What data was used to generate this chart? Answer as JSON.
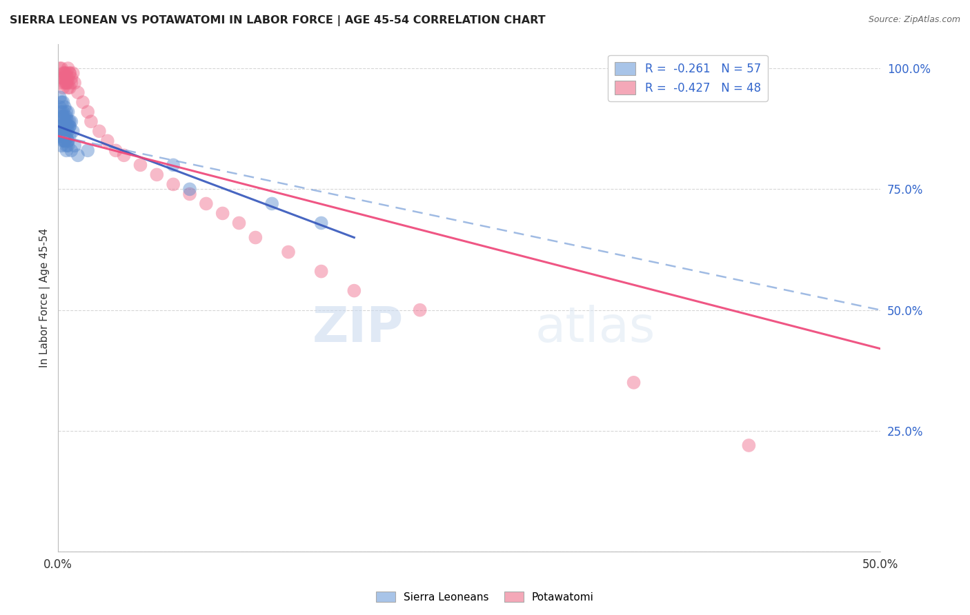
{
  "title": "SIERRA LEONEAN VS POTAWATOMI IN LABOR FORCE | AGE 45-54 CORRELATION CHART",
  "source": "Source: ZipAtlas.com",
  "ylabel": "In Labor Force | Age 45-54",
  "xlim": [
    0.0,
    0.5
  ],
  "ylim": [
    0.0,
    1.05
  ],
  "yticks": [
    0.0,
    0.25,
    0.5,
    0.75,
    1.0
  ],
  "ytick_labels": [
    "",
    "25.0%",
    "50.0%",
    "75.0%",
    "100.0%"
  ],
  "xticks": [
    0.0,
    0.1,
    0.2,
    0.3,
    0.4,
    0.5
  ],
  "xtick_labels": [
    "0.0%",
    "",
    "",
    "",
    "",
    "50.0%"
  ],
  "legend_labels": [
    "R =  -0.261   N = 57",
    "R =  -0.427   N = 48"
  ],
  "legend_colors": [
    "#a8c4e8",
    "#f4a8b8"
  ],
  "blue_color": "#5588cc",
  "pink_color": "#ee6688",
  "trendline_blue_solid_color": "#3355bb",
  "trendline_blue_dash_color": "#88aadd",
  "trendline_pink_color": "#ee4477",
  "watermark": "ZIPatlas",
  "background_color": "#ffffff",
  "blue_scatter_x": [
    0.001,
    0.002,
    0.002,
    0.003,
    0.003,
    0.003,
    0.004,
    0.004,
    0.004,
    0.005,
    0.005,
    0.005,
    0.006,
    0.006,
    0.006,
    0.007,
    0.007,
    0.008,
    0.008,
    0.009,
    0.001,
    0.002,
    0.003,
    0.004,
    0.005,
    0.006,
    0.001,
    0.002,
    0.003,
    0.004,
    0.005,
    0.001,
    0.002,
    0.003,
    0.004,
    0.005,
    0.006,
    0.007,
    0.002,
    0.003,
    0.004,
    0.005,
    0.006,
    0.001,
    0.002,
    0.003,
    0.004,
    0.005,
    0.006,
    0.007,
    0.01,
    0.012,
    0.018,
    0.07,
    0.08,
    0.13,
    0.16
  ],
  "blue_scatter_y": [
    0.88,
    0.91,
    0.86,
    0.9,
    0.87,
    0.93,
    0.89,
    0.85,
    0.92,
    0.88,
    0.84,
    0.9,
    0.87,
    0.91,
    0.85,
    0.88,
    0.86,
    0.89,
    0.83,
    0.87,
    0.92,
    0.88,
    0.85,
    0.9,
    0.86,
    0.89,
    0.94,
    0.87,
    0.91,
    0.88,
    0.83,
    0.9,
    0.86,
    0.88,
    0.85,
    0.87,
    0.84,
    0.89,
    0.93,
    0.87,
    0.85,
    0.91,
    0.88,
    0.86,
    0.84,
    0.9,
    0.87,
    0.89,
    0.85,
    0.88,
    0.84,
    0.82,
    0.83,
    0.8,
    0.75,
    0.72,
    0.68
  ],
  "pink_scatter_x": [
    0.001,
    0.002,
    0.003,
    0.004,
    0.005,
    0.006,
    0.007,
    0.002,
    0.003,
    0.004,
    0.005,
    0.006,
    0.001,
    0.003,
    0.004,
    0.005,
    0.006,
    0.007,
    0.008,
    0.004,
    0.005,
    0.006,
    0.007,
    0.008,
    0.009,
    0.01,
    0.012,
    0.015,
    0.018,
    0.02,
    0.025,
    0.03,
    0.035,
    0.04,
    0.05,
    0.06,
    0.07,
    0.08,
    0.09,
    0.1,
    0.11,
    0.12,
    0.14,
    0.16,
    0.18,
    0.22,
    0.35,
    0.42
  ],
  "pink_scatter_y": [
    0.97,
    1.0,
    0.98,
    0.99,
    0.97,
    1.0,
    0.99,
    0.98,
    0.96,
    0.99,
    0.97,
    0.98,
    1.0,
    0.99,
    0.97,
    0.98,
    0.96,
    0.99,
    0.97,
    0.98,
    0.99,
    0.97,
    0.96,
    0.98,
    0.99,
    0.97,
    0.95,
    0.93,
    0.91,
    0.89,
    0.87,
    0.85,
    0.83,
    0.82,
    0.8,
    0.78,
    0.76,
    0.74,
    0.72,
    0.7,
    0.68,
    0.65,
    0.62,
    0.58,
    0.54,
    0.5,
    0.35,
    0.22
  ],
  "blue_trendline_solid": [
    [
      0.0,
      0.88
    ],
    [
      0.18,
      0.65
    ]
  ],
  "blue_trendline_dash": [
    [
      0.0,
      0.86
    ],
    [
      0.5,
      0.5
    ]
  ],
  "pink_trendline_solid": [
    [
      0.0,
      0.86
    ],
    [
      0.5,
      0.42
    ]
  ]
}
